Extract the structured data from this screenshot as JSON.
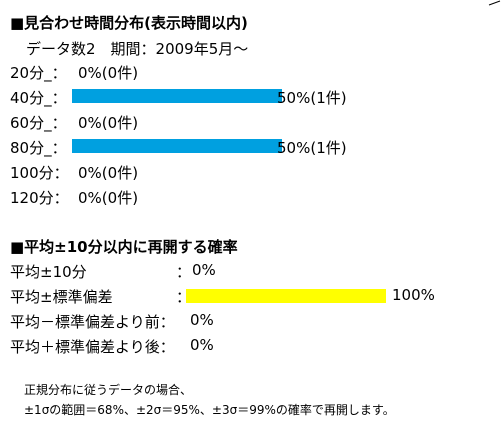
{
  "distribution": {
    "title": "■見合わせ時間分布(表示時間以内)",
    "subtitle": "データ数2　期間：2009年5月～",
    "rows": [
      {
        "label": "20分_：",
        "text": "0%(0件)",
        "share": 0
      },
      {
        "label": "40分_：",
        "text": "50%(1件)",
        "share": 0.5
      },
      {
        "label": "60分_：",
        "text": "0%(0件)",
        "share": 0
      },
      {
        "label": "80分_：",
        "text": "50%(1件)",
        "share": 0.5
      },
      {
        "label": "100分：",
        "text": "0%(0件)",
        "share": 0
      },
      {
        "label": "120分：",
        "text": "0%(0件)",
        "share": 0
      }
    ],
    "bar_color": "#00a0e0"
  },
  "probability": {
    "title": "■平均±10分以内に再開する確率",
    "rows": [
      {
        "label": "平均±10分",
        "colon": "：",
        "value": "0%",
        "share": 0
      },
      {
        "label": "平均±標準偏差",
        "colon": "：",
        "value": "100%",
        "share": 1.0
      },
      {
        "label": "平均－標準偏差より前：",
        "value": "0%",
        "share": 0
      },
      {
        "label": "平均＋標準偏差より後：",
        "value": "0%",
        "share": 0
      }
    ],
    "bar_color": "#ffff00"
  },
  "note": {
    "line1": "正規分布に従うデータの場合、",
    "line2": "±1σの範囲＝68%、±2σ＝95%、±3σ＝99%の確率で再開します。"
  }
}
